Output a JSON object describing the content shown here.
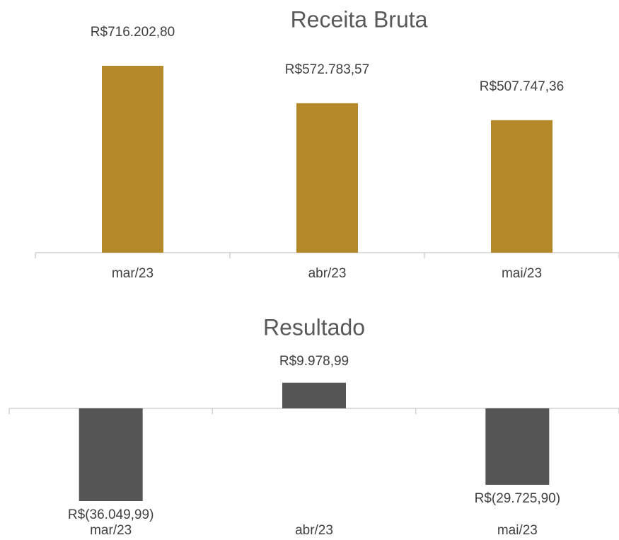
{
  "chart_data": [
    {
      "type": "bar",
      "title": "Receita Bruta",
      "categories": [
        "mar/23",
        "abr/23",
        "mai/23"
      ],
      "values": [
        716202.8,
        572783.57,
        507747.36
      ],
      "value_labels": [
        "R$716.202,80",
        "R$572.783,57",
        "R$507.747,36"
      ],
      "color": "#b5892a"
    },
    {
      "type": "bar",
      "title": "Resultado",
      "categories": [
        "mar/23",
        "abr/23",
        "mai/23"
      ],
      "values": [
        -36049.99,
        9978.99,
        -29725.9
      ],
      "value_labels": [
        "R$(36.049,99)",
        "R$9.978,99",
        "R$(29.725,90)"
      ],
      "color": "#555555"
    }
  ]
}
